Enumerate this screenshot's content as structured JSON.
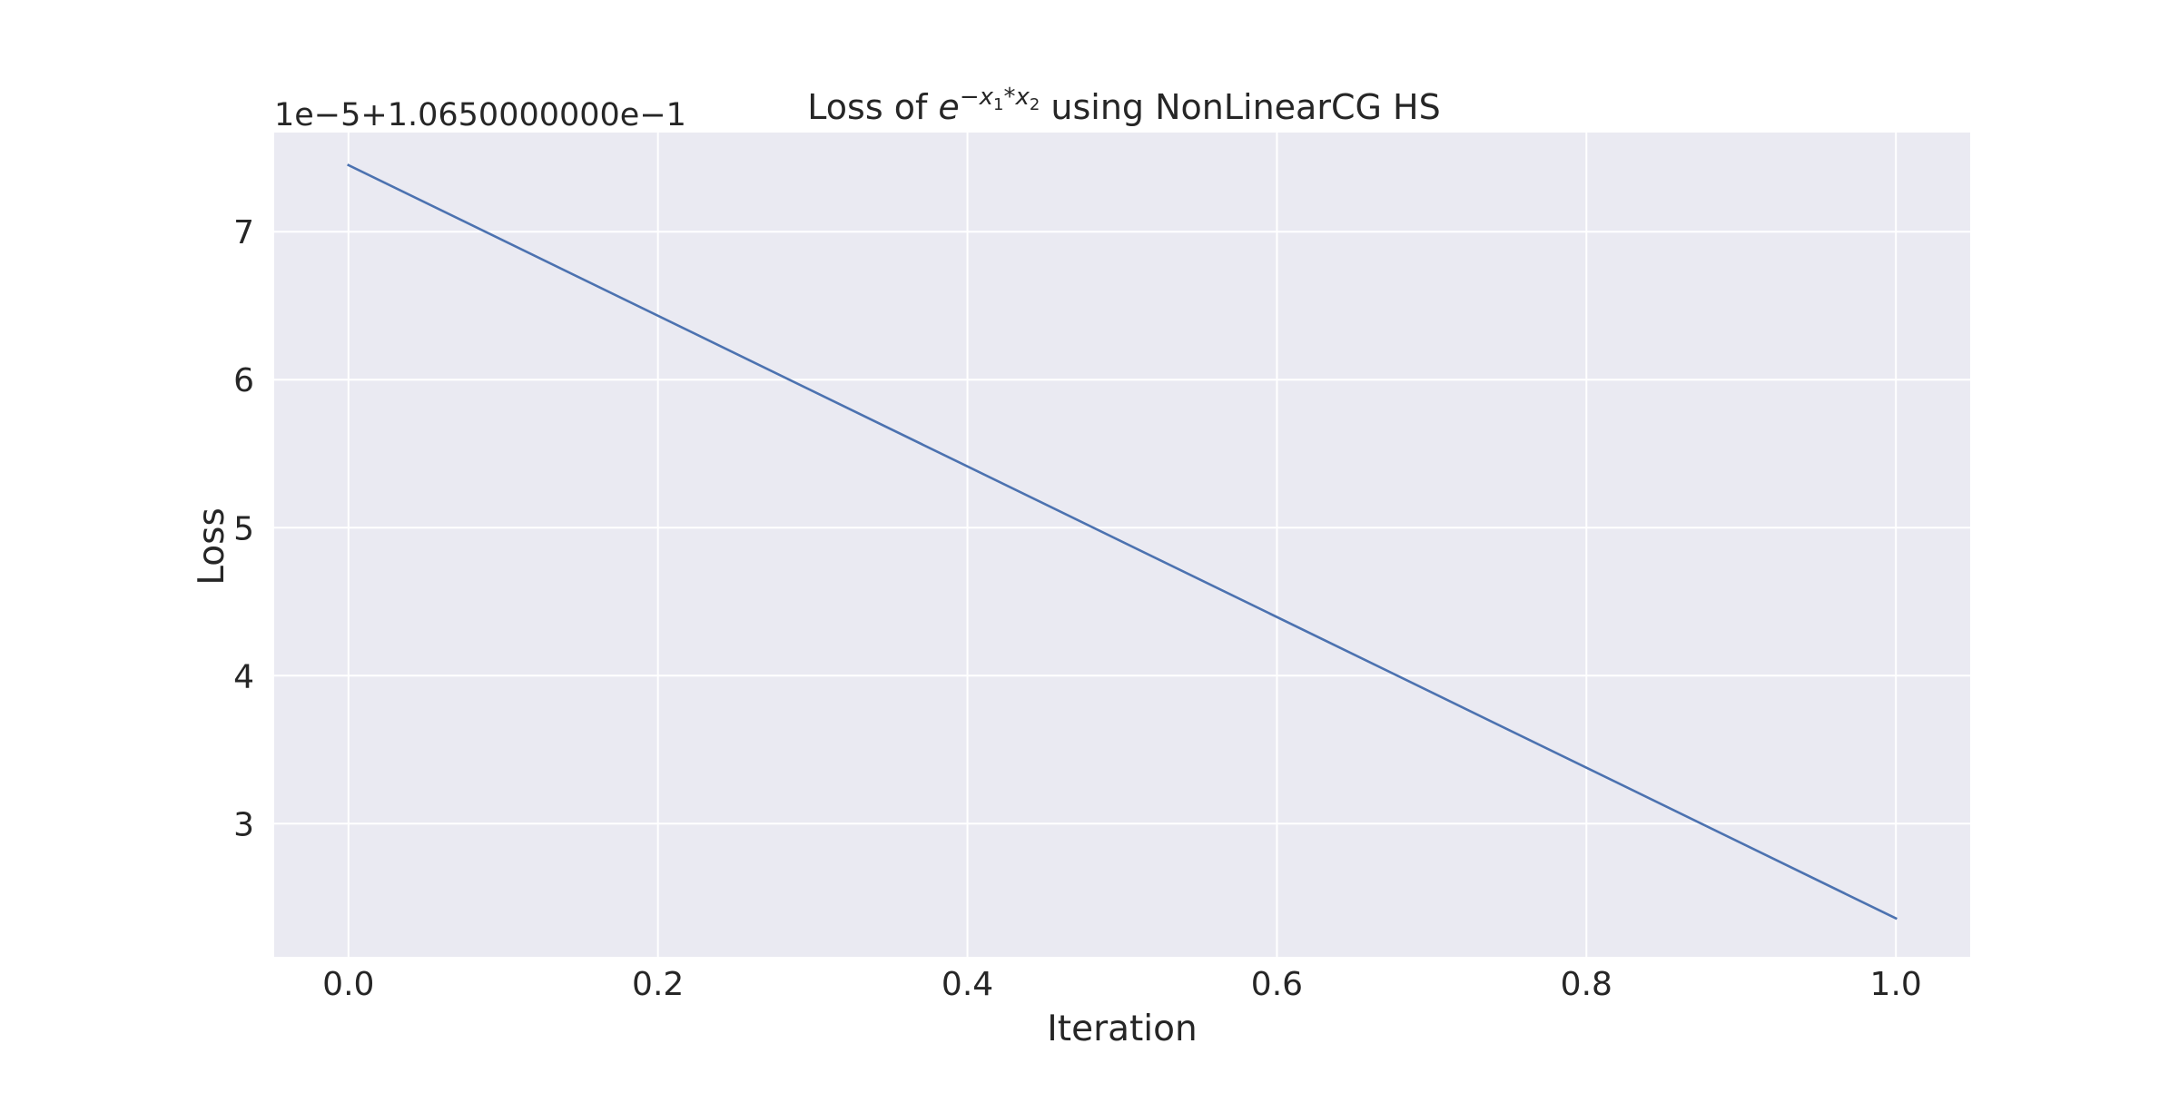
{
  "chart_data": {
    "type": "line",
    "title": {
      "prefix": "Loss of ",
      "base": "e",
      "exponent_minus": "−",
      "exponent_var1": "x",
      "exponent_sub1": "1",
      "exponent_op": "*",
      "exponent_var2": "x",
      "exponent_sub2": "2",
      "suffix": " using NonLinearCG HS"
    },
    "xlabel": "Iteration",
    "ylabel": "Loss",
    "y_offset_label": "1e−5+1.0650000000e−1",
    "xlim": [
      -0.048,
      1.048
    ],
    "ylim": [
      2.1,
      7.67
    ],
    "x_ticks": [
      0.0,
      0.2,
      0.4,
      0.6,
      0.8,
      1.0
    ],
    "x_tick_labels": [
      "0.0",
      "0.2",
      "0.4",
      "0.6",
      "0.8",
      "1.0"
    ],
    "y_ticks": [
      3,
      4,
      5,
      6,
      7
    ],
    "y_tick_labels": [
      "3",
      "4",
      "5",
      "6",
      "7"
    ],
    "grid": true,
    "background": "#eaeaf2",
    "grid_color": "#ffffff",
    "series": [
      {
        "color": "#4c72b0",
        "x": [
          0,
          1
        ],
        "y": [
          7.45,
          2.36
        ]
      }
    ]
  }
}
